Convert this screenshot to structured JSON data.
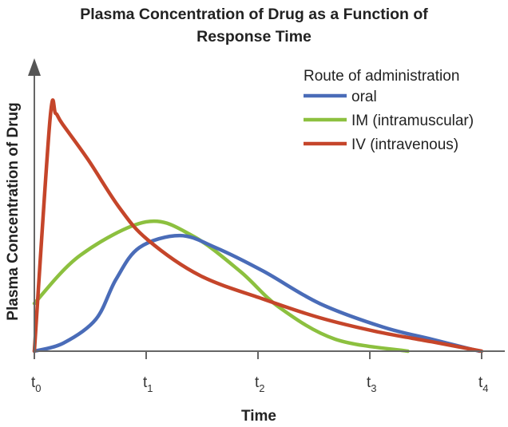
{
  "chart_data": {
    "type": "line",
    "title": "Plasma Concentration of Drug as a Function of Response Time",
    "title_lines": [
      "Plasma Concentration of Drug as a Function of",
      "Response Time"
    ],
    "xlabel": "Time",
    "ylabel": "Plasma Concentration of Drug",
    "xlim": [
      0,
      4
    ],
    "ylim": [
      0,
      100
    ],
    "grid": false,
    "x_ticks": [
      {
        "base": "t",
        "sub": "0",
        "value": 0
      },
      {
        "base": "t",
        "sub": "1",
        "value": 1
      },
      {
        "base": "t",
        "sub": "2",
        "value": 2
      },
      {
        "base": "t",
        "sub": "3",
        "value": 3
      },
      {
        "base": "t",
        "sub": "4",
        "value": 4
      }
    ],
    "legend": {
      "title": "Route of administration",
      "placement": "top-right"
    },
    "series": [
      {
        "name": "oral",
        "color": "#4a6cb8",
        "x": [
          0,
          0.26,
          0.55,
          0.73,
          0.94,
          1.3,
          1.62,
          2.05,
          2.55,
          3.12,
          3.55,
          3.98
        ],
        "y": [
          0,
          2.9,
          11.4,
          25.7,
          37.1,
          41.4,
          37.1,
          28.6,
          17.1,
          8.6,
          4.3,
          0
        ]
      },
      {
        "name": "IM (intramuscular)",
        "color": "#8cc03f",
        "x": [
          0,
          0.41,
          1.0,
          1.41,
          1.84,
          2.19,
          2.69,
          3.34
        ],
        "y": [
          17.1,
          34.3,
          46.3,
          41.4,
          28.6,
          15.7,
          4.3,
          0
        ]
      },
      {
        "name": "IV (intravenous)",
        "color": "#c5452a",
        "x": [
          0,
          0.14,
          0.19,
          0.25,
          0.48,
          0.76,
          1.01,
          1.48,
          2.05,
          2.55,
          3.05,
          3.55,
          4.0
        ],
        "y": [
          0,
          82.9,
          85.1,
          81.4,
          68.6,
          51.4,
          40,
          27.1,
          18.6,
          12,
          7.1,
          3.4,
          0
        ]
      }
    ]
  }
}
